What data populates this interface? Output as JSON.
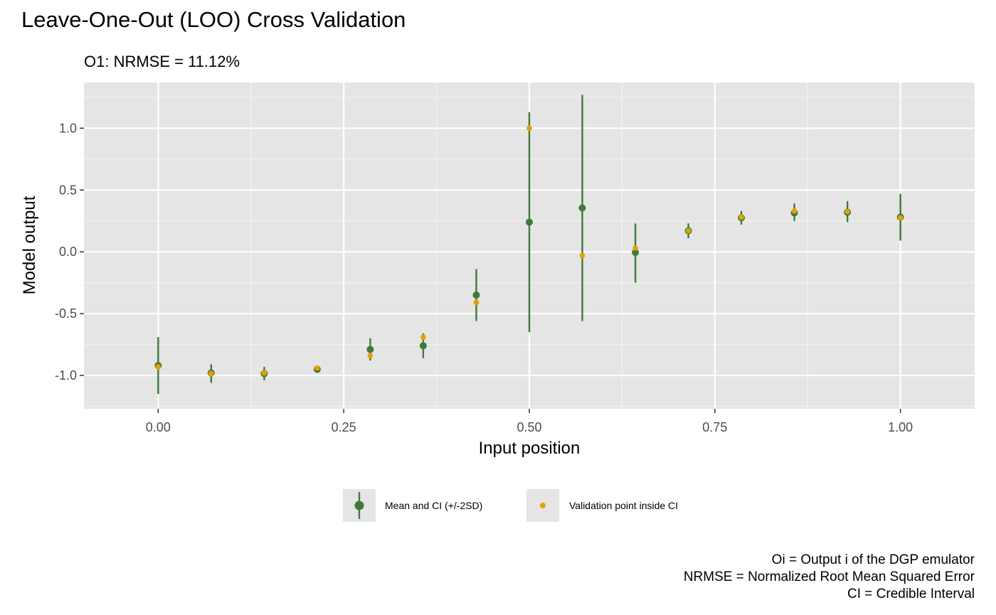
{
  "chart_data": {
    "type": "scatter",
    "title": "Leave-One-Out (LOO) Cross Validation",
    "subtitle": "O1: NRMSE = 11.12%",
    "xlabel": "Input position",
    "ylabel": "Model output",
    "xlim": [
      -0.1,
      1.1
    ],
    "ylim": [
      -1.27,
      1.37
    ],
    "x_ticks": [
      0.0,
      0.25,
      0.5,
      0.75,
      1.0
    ],
    "x_tick_labels": [
      "0.00",
      "0.25",
      "0.50",
      "0.75",
      "1.00"
    ],
    "y_ticks": [
      -1.0,
      -0.5,
      0.0,
      0.5,
      1.0
    ],
    "y_tick_labels": [
      "-1.0",
      "-0.5",
      "0.0",
      "0.5",
      "1.0"
    ],
    "grid": true,
    "legend_position": "bottom",
    "series": [
      {
        "name": "Mean and CI (+/-2SD)",
        "color": "#3f7a3a",
        "x": [
          0.0,
          0.0714,
          0.1429,
          0.2143,
          0.2857,
          0.3571,
          0.4286,
          0.5,
          0.5714,
          0.6429,
          0.7143,
          0.7857,
          0.8571,
          0.9286,
          1.0
        ],
        "mean": [
          -0.92,
          -0.98,
          -0.985,
          -0.95,
          -0.79,
          -0.76,
          -0.35,
          0.24,
          0.355,
          -0.005,
          0.17,
          0.275,
          0.315,
          0.32,
          0.28
        ],
        "lower": [
          -1.15,
          -1.06,
          -1.04,
          -0.98,
          -0.88,
          -0.86,
          -0.56,
          -0.65,
          -0.56,
          -0.25,
          0.11,
          0.22,
          0.25,
          0.24,
          0.09
        ],
        "upper": [
          -0.69,
          -0.91,
          -0.93,
          -0.92,
          -0.7,
          -0.66,
          -0.14,
          1.13,
          1.27,
          0.23,
          0.23,
          0.33,
          0.39,
          0.41,
          0.47
        ]
      },
      {
        "name": "Validation point inside CI",
        "color": "#e69f00",
        "x": [
          0.0,
          0.0714,
          0.1429,
          0.2143,
          0.2857,
          0.3571,
          0.4286,
          0.5,
          0.5714,
          0.6429,
          0.7143,
          0.7857,
          0.8571,
          0.9286,
          1.0
        ],
        "y": [
          -0.93,
          -0.985,
          -0.98,
          -0.94,
          -0.84,
          -0.69,
          -0.41,
          1.0,
          -0.03,
          0.03,
          0.17,
          0.28,
          0.33,
          0.325,
          0.275
        ]
      }
    ],
    "caption": [
      "Oi = Output i of the DGP emulator",
      "NRMSE = Normalized Root Mean Squared Error",
      "CI = Credible Interval"
    ]
  }
}
